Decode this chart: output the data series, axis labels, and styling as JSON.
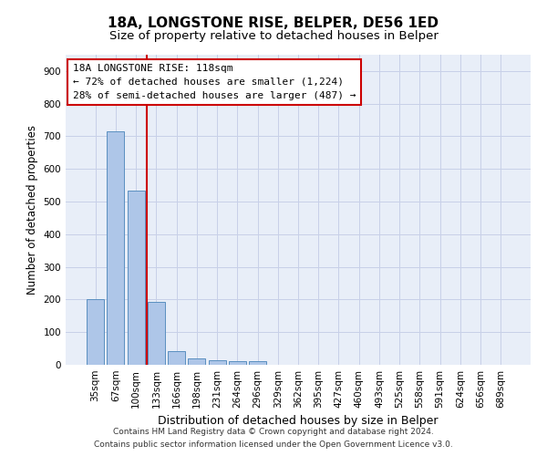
{
  "title": "18A, LONGSTONE RISE, BELPER, DE56 1ED",
  "subtitle": "Size of property relative to detached houses in Belper",
  "xlabel": "Distribution of detached houses by size in Belper",
  "ylabel": "Number of detached properties",
  "bin_labels": [
    "35sqm",
    "67sqm",
    "100sqm",
    "133sqm",
    "166sqm",
    "198sqm",
    "231sqm",
    "264sqm",
    "296sqm",
    "329sqm",
    "362sqm",
    "395sqm",
    "427sqm",
    "460sqm",
    "493sqm",
    "525sqm",
    "558sqm",
    "591sqm",
    "624sqm",
    "656sqm",
    "689sqm"
  ],
  "bar_values": [
    202,
    715,
    535,
    193,
    42,
    19,
    15,
    12,
    10,
    0,
    0,
    0,
    0,
    0,
    0,
    0,
    0,
    0,
    0,
    0,
    0
  ],
  "bar_color": "#aec6e8",
  "bar_edgecolor": "#5a8fc0",
  "property_line_x": 2.53,
  "annotation_line1": "18A LONGSTONE RISE: 118sqm",
  "annotation_line2": "← 72% of detached houses are smaller (1,224)",
  "annotation_line3": "28% of semi-detached houses are larger (487) →",
  "annotation_box_color": "#ffffff",
  "annotation_box_edgecolor": "#cc0000",
  "vline_color": "#cc0000",
  "ylim": [
    0,
    950
  ],
  "yticks": [
    0,
    100,
    200,
    300,
    400,
    500,
    600,
    700,
    800,
    900
  ],
  "grid_color": "#c8d0e8",
  "background_color": "#e8eef8",
  "footer_line1": "Contains HM Land Registry data © Crown copyright and database right 2024.",
  "footer_line2": "Contains public sector information licensed under the Open Government Licence v3.0.",
  "title_fontsize": 11,
  "subtitle_fontsize": 9.5,
  "annotation_fontsize": 8,
  "tick_fontsize": 7.5,
  "ylabel_fontsize": 8.5,
  "xlabel_fontsize": 9
}
